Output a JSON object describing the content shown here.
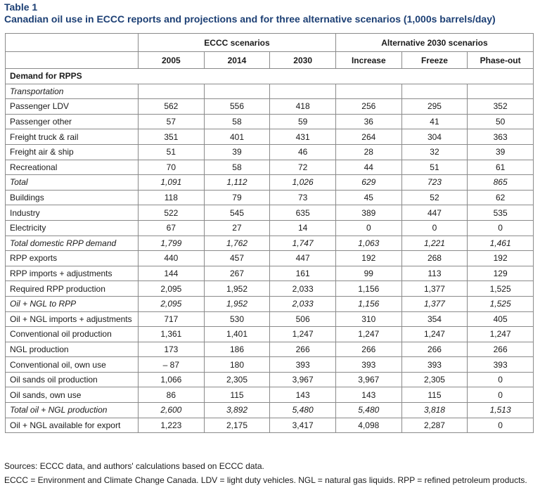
{
  "caption": {
    "label": "Table 1",
    "title": "Canadian oil use in ECCC reports and projections and for three alternative scenarios (1,000s barrels/day)"
  },
  "header": {
    "groups": [
      "ECCC scenarios",
      "Alternative 2030 scenarios"
    ],
    "columns": [
      "2005",
      "2014",
      "2030",
      "Increase",
      "Freeze",
      "Phase-out"
    ]
  },
  "rows": [
    {
      "label": "Demand for RPPS",
      "values": [
        "",
        "",
        "",
        "",
        "",
        ""
      ]
    },
    {
      "label": "Transportation",
      "values": [
        "",
        "",
        "",
        "",
        "",
        ""
      ]
    },
    {
      "label": "Passenger LDV",
      "values": [
        "562",
        "556",
        "418",
        "256",
        "295",
        "352"
      ]
    },
    {
      "label": "Passenger other",
      "values": [
        "57",
        "58",
        "59",
        "36",
        "41",
        "50"
      ]
    },
    {
      "label": "Freight truck & rail",
      "values": [
        "351",
        "401",
        "431",
        "264",
        "304",
        "363"
      ]
    },
    {
      "label": "Freight air & ship",
      "values": [
        "51",
        "39",
        "46",
        "28",
        "32",
        "39"
      ]
    },
    {
      "label": "Recreational",
      "values": [
        "70",
        "58",
        "72",
        "44",
        "51",
        "61"
      ]
    },
    {
      "label": "Total",
      "values": [
        "1,091",
        "1,112",
        "1,026",
        "629",
        "723",
        "865"
      ]
    },
    {
      "label": "Buildings",
      "values": [
        "118",
        "79",
        "73",
        "45",
        "52",
        "62"
      ]
    },
    {
      "label": "Industry",
      "values": [
        "522",
        "545",
        "635",
        "389",
        "447",
        "535"
      ]
    },
    {
      "label": "Electricity",
      "values": [
        "67",
        "27",
        "14",
        "0",
        "0",
        "0"
      ]
    },
    {
      "label": "Total domestic RPP demand",
      "values": [
        "1,799",
        "1,762",
        "1,747",
        "1,063",
        "1,221",
        "1,461"
      ]
    },
    {
      "label": "RPP exports",
      "values": [
        "440",
        "457",
        "447",
        "192",
        "268",
        "192"
      ]
    },
    {
      "label": "RPP imports + adjustments",
      "values": [
        "144",
        "267",
        "161",
        "99",
        "113",
        "129"
      ]
    },
    {
      "label": "Required RPP production",
      "values": [
        "2,095",
        "1,952",
        "2,033",
        "1,156",
        "1,377",
        "1,525"
      ]
    },
    {
      "label": "Oil + NGL to RPP",
      "values": [
        "2,095",
        "1,952",
        "2,033",
        "1,156",
        "1,377",
        "1,525"
      ]
    },
    {
      "label": "Oil + NGL imports  + adjustments",
      "values": [
        "717",
        "530",
        "506",
        "310",
        "354",
        "405"
      ]
    },
    {
      "label": "Conventional oil production",
      "values": [
        "1,361",
        "1,401",
        "1,247",
        "1,247",
        "1,247",
        "1,247"
      ]
    },
    {
      "label": "NGL production",
      "values": [
        "173",
        "186",
        "266",
        "266",
        "266",
        "266"
      ]
    },
    {
      "label": "Conventional oil, own use",
      "values": [
        "– 87",
        "180",
        "393",
        "393",
        "393",
        "393"
      ]
    },
    {
      "label": "Oil sands oil production",
      "values": [
        "1,066",
        "2,305",
        "3,967",
        "3,967",
        "2,305",
        "0"
      ]
    },
    {
      "label": "Oil sands, own use",
      "values": [
        "86",
        "115",
        "143",
        "143",
        "115",
        "0"
      ]
    },
    {
      "label": "Total oil + NGL production",
      "values": [
        "2,600",
        "3,892",
        "5,480",
        "5,480",
        "3,818",
        "1,513"
      ]
    },
    {
      "label": "Oil + NGL available for export",
      "values": [
        "1,223",
        "2,175",
        "3,417",
        "4,098",
        "2,287",
        "0"
      ]
    }
  ],
  "footer": {
    "sources": "Sources: ECCC data, and authors' calculations based on ECCC data.",
    "abbreviations": "ECCC = Environment and Climate Change Canada. LDV = light duty vehicles. NGL = natural gas liquids. RPP = refined petroleum products."
  }
}
